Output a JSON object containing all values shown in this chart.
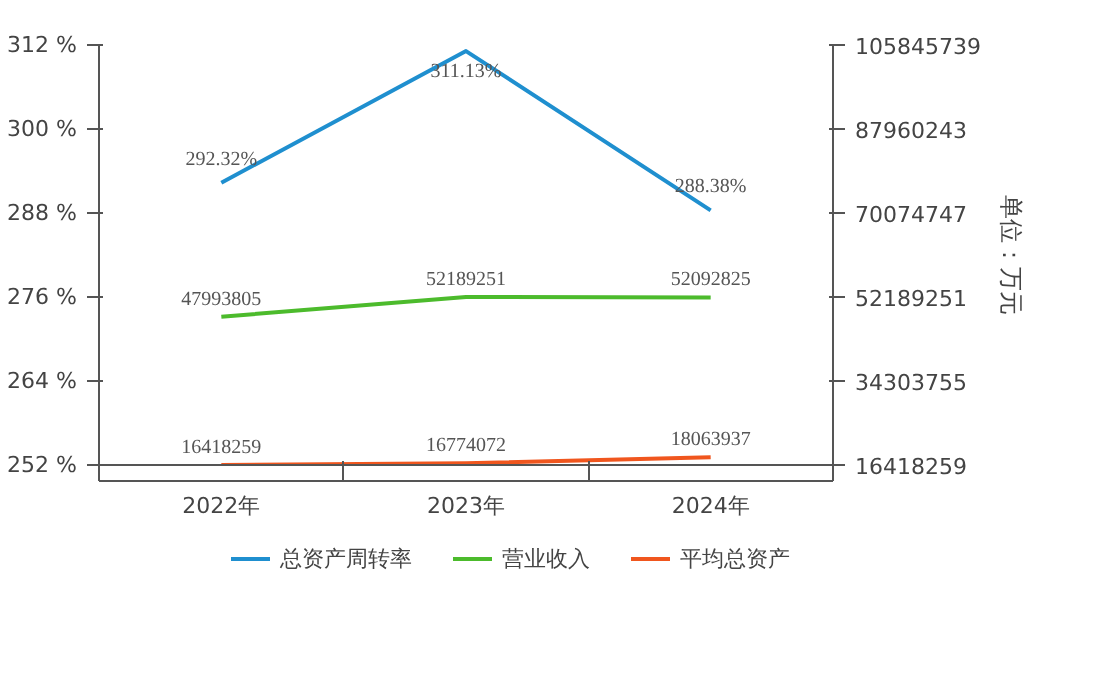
{
  "chart_data": {
    "type": "line",
    "categories": [
      "2022年",
      "2023年",
      "2024年"
    ],
    "series": [
      {
        "name": "总资产周转率",
        "color": "#1f8fcf",
        "values": [
          292.32,
          311.13,
          288.38
        ],
        "value_labels": [
          "292.32%",
          "311.13%",
          "288.38%"
        ]
      },
      {
        "name": "营业收入",
        "color": "#4cbb2c",
        "axis": "y2",
        "values": [
          47993805,
          52189251,
          52092825
        ],
        "value_labels": [
          "47993805",
          "52189251",
          "52092825"
        ]
      },
      {
        "name": "平均总资产",
        "color": "#f0561e",
        "axis": "y2",
        "values": [
          16418259,
          16774072,
          18063937
        ],
        "value_labels": [
          "16418259",
          "16774072",
          "18063937"
        ]
      }
    ],
    "ylim": [
      252,
      312
    ],
    "yticks": [
      {
        "value": 252,
        "label": "252 %"
      },
      {
        "value": 264,
        "label": "264 %"
      },
      {
        "value": 276,
        "label": "276 %"
      },
      {
        "value": 288,
        "label": "288 %"
      },
      {
        "value": 300,
        "label": "300 %"
      },
      {
        "value": 312,
        "label": "312 %"
      }
    ],
    "y2lim": [
      16418259,
      105845739
    ],
    "y2ticks": [
      16418259,
      34303755,
      52189251,
      70074747,
      87960243,
      105845739
    ],
    "y2label": "单位：万元",
    "grid": false,
    "legend": "bottom",
    "marker": "none",
    "line_style": "solid"
  }
}
